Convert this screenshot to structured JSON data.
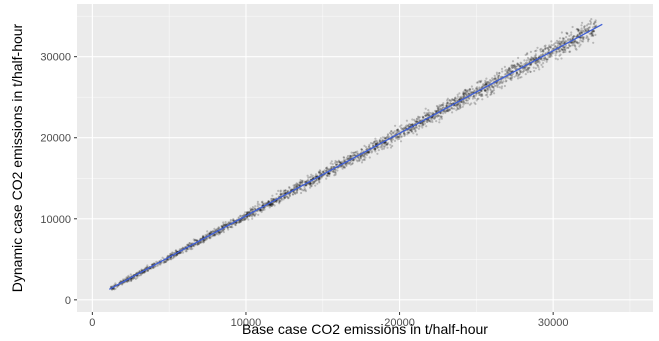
{
  "chart_data": {
    "type": "scatter",
    "title": "",
    "xlabel": "Base case  CO2 emissions in t/half-hour",
    "ylabel": "Dynamic case CO2 emissions in t/half-hour",
    "xlim": [
      -1000,
      36500
    ],
    "ylim": [
      -1500,
      36500
    ],
    "x_ticks": [
      0,
      10000,
      20000,
      30000
    ],
    "x_tick_labels": [
      "0",
      "10000",
      "20000",
      "30000"
    ],
    "y_ticks": [
      0,
      10000,
      20000,
      30000
    ],
    "y_tick_labels": [
      "0",
      "10000",
      "20000",
      "30000"
    ],
    "grid": true,
    "legend": "none",
    "colors": {
      "panel_background": "#ebebeb",
      "grid_major": "#ffffff",
      "points": "#000000",
      "fit_line": "#3f5fd6"
    },
    "point_cloud": {
      "x_range": [
        1200,
        32800
      ],
      "relation": "y ≈ x + 1 (near-identity), spread widening at larger x"
    },
    "series": [
      {
        "type": "points",
        "values": [
          {
            "x": 1200,
            "y": 1300
          },
          {
            "x": 5000,
            "y": 5300
          },
          {
            "x": 10000,
            "y": 10500
          },
          {
            "x": 15000,
            "y": 15600
          },
          {
            "x": 20000,
            "y": 20600
          },
          {
            "x": 25000,
            "y": 25700
          },
          {
            "x": 30000,
            "y": 30700
          },
          {
            "x": 32800,
            "y": 33500
          }
        ]
      },
      {
        "type": "fit-line",
        "values": [
          {
            "x": 1100,
            "y": 1300
          },
          {
            "x": 33200,
            "y": 34000
          }
        ]
      }
    ]
  }
}
